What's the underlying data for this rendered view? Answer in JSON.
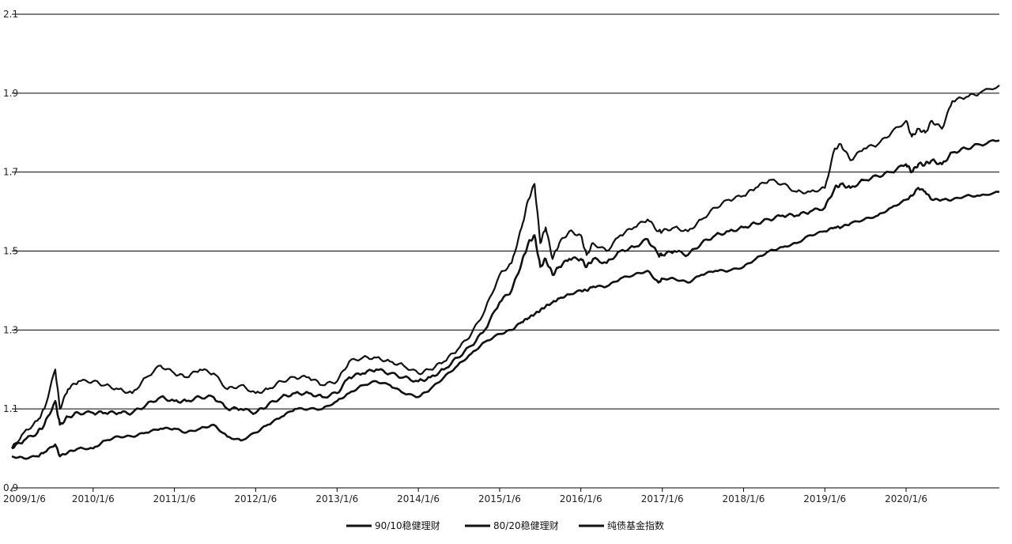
{
  "chart_data": {
    "type": "line",
    "title": "",
    "xlabel": "",
    "ylabel": "",
    "ylim": [
      0.9,
      2.1
    ],
    "yticks": [
      "0.9",
      "1.1",
      "1.3",
      "1.5",
      "1.7",
      "1.9",
      "2.1"
    ],
    "yticks_values": [
      0.9,
      1.1,
      1.3,
      1.5,
      1.7,
      1.9,
      2.1
    ],
    "xlim": [
      "2009-01-06",
      "2021-02-28"
    ],
    "xticks": [
      "2009/1/6",
      "2010/1/6",
      "2011/1/6",
      "2012/1/6",
      "2013/1/6",
      "2014/1/6",
      "2015/1/6",
      "2016/1/6",
      "2017/1/6",
      "2018/1/6",
      "2019/1/6",
      "2020/1/6"
    ],
    "xticks_dates": [
      "2009-01-06",
      "2010-01-06",
      "2011-01-06",
      "2012-01-06",
      "2013-01-06",
      "2014-01-06",
      "2015-01-06",
      "2016-01-06",
      "2017-01-06",
      "2018-01-06",
      "2019-01-06",
      "2020-01-06"
    ],
    "grid": "horizontal",
    "legend_position": "bottom",
    "colors": {
      "line": "#111111",
      "grid": "#000000",
      "axis": "#000000"
    },
    "series": [
      {
        "name": "90/10稳健理财",
        "points": [
          [
            "2009-01-06",
            1.0
          ],
          [
            "2009-03-01",
            1.04
          ],
          [
            "2009-05-01",
            1.07
          ],
          [
            "2009-06-01",
            1.1
          ],
          [
            "2009-07-20",
            1.2
          ],
          [
            "2009-08-10",
            1.1
          ],
          [
            "2009-09-15",
            1.15
          ],
          [
            "2009-11-01",
            1.17
          ],
          [
            "2010-01-06",
            1.17
          ],
          [
            "2010-03-01",
            1.16
          ],
          [
            "2010-05-01",
            1.15
          ],
          [
            "2010-07-01",
            1.14
          ],
          [
            "2010-09-01",
            1.18
          ],
          [
            "2010-11-05",
            1.21
          ],
          [
            "2011-01-06",
            1.19
          ],
          [
            "2011-03-01",
            1.18
          ],
          [
            "2011-05-01",
            1.2
          ],
          [
            "2011-07-01",
            1.19
          ],
          [
            "2011-09-01",
            1.15
          ],
          [
            "2011-11-01",
            1.16
          ],
          [
            "2012-01-06",
            1.14
          ],
          [
            "2012-03-01",
            1.15
          ],
          [
            "2012-05-01",
            1.17
          ],
          [
            "2012-07-01",
            1.18
          ],
          [
            "2012-09-01",
            1.18
          ],
          [
            "2012-11-01",
            1.16
          ],
          [
            "2013-01-06",
            1.17
          ],
          [
            "2013-03-01",
            1.22
          ],
          [
            "2013-05-01",
            1.23
          ],
          [
            "2013-07-01",
            1.23
          ],
          [
            "2013-09-01",
            1.22
          ],
          [
            "2013-11-01",
            1.21
          ],
          [
            "2014-01-06",
            1.19
          ],
          [
            "2014-03-01",
            1.2
          ],
          [
            "2014-05-01",
            1.22
          ],
          [
            "2014-07-01",
            1.25
          ],
          [
            "2014-09-01",
            1.29
          ],
          [
            "2014-11-01",
            1.35
          ],
          [
            "2015-01-06",
            1.44
          ],
          [
            "2015-03-01",
            1.47
          ],
          [
            "2015-04-15",
            1.56
          ],
          [
            "2015-05-15",
            1.63
          ],
          [
            "2015-06-12",
            1.67
          ],
          [
            "2015-07-08",
            1.52
          ],
          [
            "2015-08-01",
            1.56
          ],
          [
            "2015-09-01",
            1.48
          ],
          [
            "2015-10-01",
            1.52
          ],
          [
            "2015-11-15",
            1.55
          ],
          [
            "2016-01-06",
            1.54
          ],
          [
            "2016-02-01",
            1.49
          ],
          [
            "2016-03-01",
            1.52
          ],
          [
            "2016-05-01",
            1.5
          ],
          [
            "2016-07-01",
            1.54
          ],
          [
            "2016-09-01",
            1.56
          ],
          [
            "2016-11-01",
            1.58
          ],
          [
            "2016-12-20",
            1.55
          ],
          [
            "2017-01-06",
            1.55
          ],
          [
            "2017-03-01",
            1.56
          ],
          [
            "2017-05-01",
            1.55
          ],
          [
            "2017-07-01",
            1.58
          ],
          [
            "2017-09-01",
            1.61
          ],
          [
            "2017-11-01",
            1.63
          ],
          [
            "2018-01-06",
            1.64
          ],
          [
            "2018-03-01",
            1.66
          ],
          [
            "2018-05-01",
            1.68
          ],
          [
            "2018-07-01",
            1.67
          ],
          [
            "2018-09-01",
            1.65
          ],
          [
            "2018-11-01",
            1.65
          ],
          [
            "2019-01-06",
            1.66
          ],
          [
            "2019-02-20",
            1.76
          ],
          [
            "2019-03-20",
            1.77
          ],
          [
            "2019-05-01",
            1.73
          ],
          [
            "2019-07-01",
            1.76
          ],
          [
            "2019-09-01",
            1.77
          ],
          [
            "2019-11-01",
            1.8
          ],
          [
            "2020-01-06",
            1.83
          ],
          [
            "2020-02-01",
            1.79
          ],
          [
            "2020-03-01",
            1.81
          ],
          [
            "2020-04-01",
            1.8
          ],
          [
            "2020-05-01",
            1.83
          ],
          [
            "2020-06-15",
            1.81
          ],
          [
            "2020-08-01",
            1.88
          ],
          [
            "2020-10-01",
            1.89
          ],
          [
            "2020-12-01",
            1.9
          ],
          [
            "2021-02-28",
            1.92
          ]
        ]
      },
      {
        "name": "80/20稳健理财",
        "points": [
          [
            "2009-01-06",
            1.0
          ],
          [
            "2009-03-01",
            1.02
          ],
          [
            "2009-05-01",
            1.04
          ],
          [
            "2009-06-01",
            1.06
          ],
          [
            "2009-07-20",
            1.12
          ],
          [
            "2009-08-10",
            1.06
          ],
          [
            "2009-09-15",
            1.08
          ],
          [
            "2009-11-01",
            1.09
          ],
          [
            "2010-01-06",
            1.09
          ],
          [
            "2010-03-01",
            1.09
          ],
          [
            "2010-05-01",
            1.09
          ],
          [
            "2010-07-01",
            1.09
          ],
          [
            "2010-09-01",
            1.11
          ],
          [
            "2010-11-05",
            1.13
          ],
          [
            "2011-01-06",
            1.12
          ],
          [
            "2011-03-01",
            1.12
          ],
          [
            "2011-05-01",
            1.13
          ],
          [
            "2011-07-01",
            1.13
          ],
          [
            "2011-09-01",
            1.1
          ],
          [
            "2011-11-01",
            1.1
          ],
          [
            "2012-01-06",
            1.09
          ],
          [
            "2012-03-01",
            1.11
          ],
          [
            "2012-05-01",
            1.13
          ],
          [
            "2012-07-01",
            1.14
          ],
          [
            "2012-09-01",
            1.14
          ],
          [
            "2012-11-01",
            1.13
          ],
          [
            "2013-01-06",
            1.14
          ],
          [
            "2013-03-01",
            1.18
          ],
          [
            "2013-05-01",
            1.19
          ],
          [
            "2013-07-01",
            1.2
          ],
          [
            "2013-09-01",
            1.19
          ],
          [
            "2013-11-01",
            1.18
          ],
          [
            "2014-01-06",
            1.17
          ],
          [
            "2014-03-01",
            1.18
          ],
          [
            "2014-05-01",
            1.2
          ],
          [
            "2014-07-01",
            1.23
          ],
          [
            "2014-09-01",
            1.26
          ],
          [
            "2014-11-01",
            1.3
          ],
          [
            "2015-01-06",
            1.37
          ],
          [
            "2015-03-01",
            1.4
          ],
          [
            "2015-04-15",
            1.47
          ],
          [
            "2015-05-15",
            1.52
          ],
          [
            "2015-06-12",
            1.54
          ],
          [
            "2015-07-08",
            1.46
          ],
          [
            "2015-08-01",
            1.48
          ],
          [
            "2015-09-01",
            1.44
          ],
          [
            "2015-10-01",
            1.46
          ],
          [
            "2015-11-15",
            1.48
          ],
          [
            "2016-01-06",
            1.48
          ],
          [
            "2016-02-01",
            1.46
          ],
          [
            "2016-03-01",
            1.48
          ],
          [
            "2016-05-01",
            1.47
          ],
          [
            "2016-07-01",
            1.5
          ],
          [
            "2016-09-01",
            1.51
          ],
          [
            "2016-11-01",
            1.53
          ],
          [
            "2016-12-20",
            1.49
          ],
          [
            "2017-01-06",
            1.49
          ],
          [
            "2017-03-01",
            1.5
          ],
          [
            "2017-05-01",
            1.49
          ],
          [
            "2017-07-01",
            1.52
          ],
          [
            "2017-09-01",
            1.54
          ],
          [
            "2017-11-01",
            1.55
          ],
          [
            "2018-01-06",
            1.56
          ],
          [
            "2018-03-01",
            1.57
          ],
          [
            "2018-05-01",
            1.58
          ],
          [
            "2018-07-01",
            1.59
          ],
          [
            "2018-09-01",
            1.59
          ],
          [
            "2018-11-01",
            1.6
          ],
          [
            "2019-01-06",
            1.61
          ],
          [
            "2019-02-20",
            1.66
          ],
          [
            "2019-03-20",
            1.67
          ],
          [
            "2019-05-01",
            1.66
          ],
          [
            "2019-07-01",
            1.68
          ],
          [
            "2019-09-01",
            1.69
          ],
          [
            "2019-11-01",
            1.7
          ],
          [
            "2020-01-06",
            1.72
          ],
          [
            "2020-02-01",
            1.7
          ],
          [
            "2020-03-01",
            1.72
          ],
          [
            "2020-04-01",
            1.72
          ],
          [
            "2020-05-01",
            1.73
          ],
          [
            "2020-06-15",
            1.72
          ],
          [
            "2020-08-01",
            1.75
          ],
          [
            "2020-10-01",
            1.76
          ],
          [
            "2020-12-01",
            1.77
          ],
          [
            "2021-02-28",
            1.78
          ]
        ]
      },
      {
        "name": "纯债基金指数",
        "points": [
          [
            "2009-01-06",
            0.98
          ],
          [
            "2009-03-01",
            0.975
          ],
          [
            "2009-05-01",
            0.98
          ],
          [
            "2009-06-01",
            0.99
          ],
          [
            "2009-07-20",
            1.01
          ],
          [
            "2009-08-10",
            0.98
          ],
          [
            "2009-09-15",
            0.99
          ],
          [
            "2009-11-01",
            1.0
          ],
          [
            "2010-01-06",
            1.0
          ],
          [
            "2010-03-01",
            1.02
          ],
          [
            "2010-05-01",
            1.03
          ],
          [
            "2010-07-01",
            1.03
          ],
          [
            "2010-09-01",
            1.04
          ],
          [
            "2010-11-05",
            1.05
          ],
          [
            "2011-01-06",
            1.05
          ],
          [
            "2011-03-01",
            1.04
          ],
          [
            "2011-05-01",
            1.05
          ],
          [
            "2011-07-01",
            1.06
          ],
          [
            "2011-09-01",
            1.03
          ],
          [
            "2011-11-01",
            1.02
          ],
          [
            "2012-01-06",
            1.04
          ],
          [
            "2012-03-01",
            1.06
          ],
          [
            "2012-05-01",
            1.08
          ],
          [
            "2012-07-01",
            1.1
          ],
          [
            "2012-09-01",
            1.1
          ],
          [
            "2012-11-01",
            1.1
          ],
          [
            "2013-01-06",
            1.12
          ],
          [
            "2013-03-01",
            1.14
          ],
          [
            "2013-05-01",
            1.16
          ],
          [
            "2013-07-01",
            1.17
          ],
          [
            "2013-09-01",
            1.16
          ],
          [
            "2013-11-01",
            1.14
          ],
          [
            "2014-01-06",
            1.13
          ],
          [
            "2014-03-01",
            1.15
          ],
          [
            "2014-05-01",
            1.18
          ],
          [
            "2014-07-01",
            1.21
          ],
          [
            "2014-09-01",
            1.24
          ],
          [
            "2014-11-01",
            1.27
          ],
          [
            "2015-01-06",
            1.29
          ],
          [
            "2015-03-01",
            1.3
          ],
          [
            "2015-04-15",
            1.32
          ],
          [
            "2015-05-15",
            1.33
          ],
          [
            "2015-06-12",
            1.34
          ],
          [
            "2015-07-08",
            1.35
          ],
          [
            "2015-08-01",
            1.36
          ],
          [
            "2015-09-01",
            1.37
          ],
          [
            "2015-10-01",
            1.38
          ],
          [
            "2015-11-15",
            1.39
          ],
          [
            "2016-01-06",
            1.4
          ],
          [
            "2016-02-01",
            1.4
          ],
          [
            "2016-03-01",
            1.41
          ],
          [
            "2016-05-01",
            1.41
          ],
          [
            "2016-07-01",
            1.43
          ],
          [
            "2016-09-01",
            1.44
          ],
          [
            "2016-11-01",
            1.45
          ],
          [
            "2016-12-20",
            1.42
          ],
          [
            "2017-01-06",
            1.43
          ],
          [
            "2017-03-01",
            1.43
          ],
          [
            "2017-05-01",
            1.42
          ],
          [
            "2017-07-01",
            1.44
          ],
          [
            "2017-09-01",
            1.45
          ],
          [
            "2017-11-01",
            1.45
          ],
          [
            "2018-01-06",
            1.46
          ],
          [
            "2018-03-01",
            1.48
          ],
          [
            "2018-05-01",
            1.5
          ],
          [
            "2018-07-01",
            1.51
          ],
          [
            "2018-09-01",
            1.52
          ],
          [
            "2018-11-01",
            1.54
          ],
          [
            "2019-01-06",
            1.55
          ],
          [
            "2019-02-20",
            1.56
          ],
          [
            "2019-03-20",
            1.56
          ],
          [
            "2019-05-01",
            1.57
          ],
          [
            "2019-07-01",
            1.58
          ],
          [
            "2019-09-01",
            1.59
          ],
          [
            "2019-11-01",
            1.61
          ],
          [
            "2020-01-06",
            1.63
          ],
          [
            "2020-02-01",
            1.64
          ],
          [
            "2020-03-01",
            1.66
          ],
          [
            "2020-04-01",
            1.65
          ],
          [
            "2020-05-01",
            1.63
          ],
          [
            "2020-06-15",
            1.63
          ],
          [
            "2020-08-01",
            1.63
          ],
          [
            "2020-10-01",
            1.64
          ],
          [
            "2020-12-01",
            1.64
          ],
          [
            "2021-02-28",
            1.65
          ]
        ]
      }
    ]
  }
}
